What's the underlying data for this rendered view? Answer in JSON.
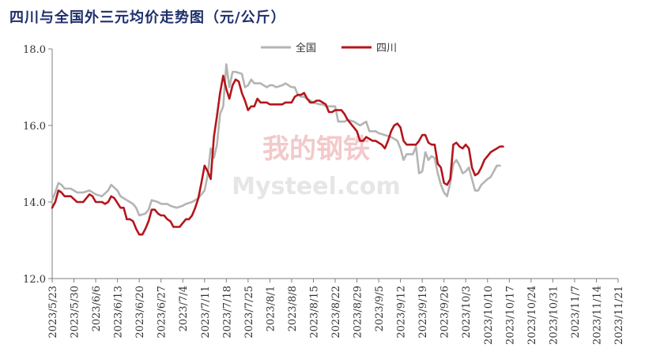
{
  "chart_data": {
    "type": "line",
    "title": "四川与全国外三元均价走势图（元/公斤）",
    "xlabel": "",
    "ylabel": "",
    "ylim": [
      12.0,
      18.0
    ],
    "y_ticks": [
      "12.0",
      "14.0",
      "16.0",
      "18.0"
    ],
    "x_ticks": [
      "2023/5/23",
      "2023/5/30",
      "2023/6/6",
      "2023/6/13",
      "2023/6/20",
      "2023/6/27",
      "2023/7/4",
      "2023/7/11",
      "2023/7/18",
      "2023/7/25",
      "2023/8/1",
      "2023/8/8",
      "2023/8/15",
      "2023/8/22",
      "2023/8/29",
      "2023/9/5",
      "2023/9/12",
      "2023/9/19",
      "2023/9/26",
      "2023/10/3",
      "2023/10/10",
      "2023/10/17",
      "2023/10/24",
      "2023/10/31",
      "2023/11/7",
      "2023/11/14",
      "2023/11/21"
    ],
    "grid": false,
    "legend_position": "top",
    "watermark": "我的钢铁 Mysteel.com",
    "series": [
      {
        "name": "全国",
        "color": "#b4b4b4",
        "points": [
          [
            0,
            14.05
          ],
          [
            1,
            14.25
          ],
          [
            2,
            14.5
          ],
          [
            3,
            14.45
          ],
          [
            4,
            14.35
          ],
          [
            6,
            14.35
          ],
          [
            8,
            14.25
          ],
          [
            10,
            14.25
          ],
          [
            12,
            14.3
          ],
          [
            14,
            14.2
          ],
          [
            16,
            14.15
          ],
          [
            18,
            14.3
          ],
          [
            19,
            14.45
          ],
          [
            21,
            14.3
          ],
          [
            22,
            14.15
          ],
          [
            24,
            14.05
          ],
          [
            26,
            13.95
          ],
          [
            27,
            13.85
          ],
          [
            28,
            13.65
          ],
          [
            30,
            13.7
          ],
          [
            31,
            13.8
          ],
          [
            32,
            14.05
          ],
          [
            34,
            14.0
          ],
          [
            35,
            13.95
          ],
          [
            37,
            13.95
          ],
          [
            38,
            13.9
          ],
          [
            40,
            13.85
          ],
          [
            42,
            13.9
          ],
          [
            43,
            13.95
          ],
          [
            45,
            14.0
          ],
          [
            47,
            14.1
          ],
          [
            49,
            14.3
          ],
          [
            50,
            14.7
          ],
          [
            51,
            15.4
          ],
          [
            52,
            15.15
          ],
          [
            53,
            15.5
          ],
          [
            54,
            16.3
          ],
          [
            55,
            16.5
          ],
          [
            56,
            17.6
          ],
          [
            57,
            17.0
          ],
          [
            58,
            17.4
          ],
          [
            59,
            17.4
          ],
          [
            61,
            17.35
          ],
          [
            62,
            17.0
          ],
          [
            63,
            17.05
          ],
          [
            64,
            17.2
          ],
          [
            65,
            17.1
          ],
          [
            67,
            17.1
          ],
          [
            69,
            17.0
          ],
          [
            70,
            17.05
          ],
          [
            71,
            17.05
          ],
          [
            72,
            17.0
          ],
          [
            74,
            17.05
          ],
          [
            75,
            17.1
          ],
          [
            77,
            17.0
          ],
          [
            78,
            17.0
          ],
          [
            79,
            16.8
          ],
          [
            80,
            16.75
          ],
          [
            81,
            16.75
          ],
          [
            82,
            16.7
          ],
          [
            84,
            16.6
          ],
          [
            86,
            16.55
          ],
          [
            87,
            16.55
          ],
          [
            88,
            16.5
          ],
          [
            91,
            16.5
          ],
          [
            92,
            16.1
          ],
          [
            94,
            16.1
          ],
          [
            95,
            16.15
          ],
          [
            97,
            16.1
          ],
          [
            99,
            16.0
          ],
          [
            101,
            16.1
          ],
          [
            102,
            15.85
          ],
          [
            104,
            15.85
          ],
          [
            105,
            15.8
          ],
          [
            107,
            15.75
          ],
          [
            109,
            15.7
          ],
          [
            110,
            15.65
          ],
          [
            111,
            15.6
          ],
          [
            112,
            15.4
          ],
          [
            113,
            15.1
          ],
          [
            114,
            15.25
          ],
          [
            116,
            15.25
          ],
          [
            117,
            15.45
          ],
          [
            118,
            14.75
          ],
          [
            119,
            14.8
          ],
          [
            120,
            15.3
          ],
          [
            121,
            15.1
          ],
          [
            122,
            15.2
          ],
          [
            123,
            15.15
          ],
          [
            124,
            14.75
          ],
          [
            125,
            14.45
          ],
          [
            126,
            14.25
          ],
          [
            127,
            14.15
          ],
          [
            128,
            14.5
          ],
          [
            129,
            15.0
          ],
          [
            130,
            15.1
          ],
          [
            131,
            14.95
          ],
          [
            132,
            14.75
          ],
          [
            133,
            14.8
          ],
          [
            134,
            14.9
          ],
          [
            135,
            14.6
          ],
          [
            136,
            14.3
          ],
          [
            137,
            14.3
          ],
          [
            138,
            14.45
          ],
          [
            140,
            14.6
          ],
          [
            141,
            14.65
          ],
          [
            142,
            14.8
          ],
          [
            143,
            14.95
          ],
          [
            144,
            14.95
          ]
        ]
      },
      {
        "name": "四川",
        "color": "#b3161b",
        "points": [
          [
            0,
            13.85
          ],
          [
            1,
            14.0
          ],
          [
            2,
            14.3
          ],
          [
            3,
            14.25
          ],
          [
            4,
            14.15
          ],
          [
            6,
            14.15
          ],
          [
            8,
            14.0
          ],
          [
            10,
            14.0
          ],
          [
            12,
            14.2
          ],
          [
            13,
            14.15
          ],
          [
            14,
            14.0
          ],
          [
            16,
            14.0
          ],
          [
            17,
            13.95
          ],
          [
            18,
            14.0
          ],
          [
            19,
            14.15
          ],
          [
            20,
            14.1
          ],
          [
            22,
            13.85
          ],
          [
            23,
            13.85
          ],
          [
            24,
            13.55
          ],
          [
            25,
            13.55
          ],
          [
            26,
            13.5
          ],
          [
            27,
            13.3
          ],
          [
            28,
            13.15
          ],
          [
            29,
            13.15
          ],
          [
            30,
            13.3
          ],
          [
            31,
            13.5
          ],
          [
            32,
            13.8
          ],
          [
            33,
            13.8
          ],
          [
            34,
            13.7
          ],
          [
            35,
            13.65
          ],
          [
            36,
            13.65
          ],
          [
            37,
            13.55
          ],
          [
            38,
            13.5
          ],
          [
            39,
            13.35
          ],
          [
            41,
            13.35
          ],
          [
            42,
            13.45
          ],
          [
            43,
            13.55
          ],
          [
            44,
            13.55
          ],
          [
            45,
            13.65
          ],
          [
            46,
            13.85
          ],
          [
            47,
            14.1
          ],
          [
            48,
            14.5
          ],
          [
            49,
            14.95
          ],
          [
            50,
            14.8
          ],
          [
            51,
            14.6
          ],
          [
            52,
            15.7
          ],
          [
            53,
            16.25
          ],
          [
            54,
            16.85
          ],
          [
            55,
            17.3
          ],
          [
            56,
            16.95
          ],
          [
            57,
            16.7
          ],
          [
            58,
            17.05
          ],
          [
            59,
            17.2
          ],
          [
            60,
            17.15
          ],
          [
            61,
            16.85
          ],
          [
            62,
            16.65
          ],
          [
            63,
            16.4
          ],
          [
            64,
            16.5
          ],
          [
            65,
            16.5
          ],
          [
            66,
            16.7
          ],
          [
            67,
            16.6
          ],
          [
            69,
            16.6
          ],
          [
            70,
            16.55
          ],
          [
            74,
            16.55
          ],
          [
            75,
            16.6
          ],
          [
            77,
            16.6
          ],
          [
            78,
            16.75
          ],
          [
            79,
            16.8
          ],
          [
            80,
            16.8
          ],
          [
            81,
            16.85
          ],
          [
            82,
            16.7
          ],
          [
            83,
            16.6
          ],
          [
            84,
            16.6
          ],
          [
            85,
            16.65
          ],
          [
            86,
            16.65
          ],
          [
            87,
            16.6
          ],
          [
            88,
            16.55
          ],
          [
            89,
            16.35
          ],
          [
            90,
            16.35
          ],
          [
            91,
            16.4
          ],
          [
            93,
            16.4
          ],
          [
            94,
            16.3
          ],
          [
            95,
            16.15
          ],
          [
            97,
            15.95
          ],
          [
            98,
            15.85
          ],
          [
            99,
            15.6
          ],
          [
            100,
            15.6
          ],
          [
            101,
            15.7
          ],
          [
            102,
            15.65
          ],
          [
            103,
            15.6
          ],
          [
            104,
            15.6
          ],
          [
            106,
            15.5
          ],
          [
            107,
            15.4
          ],
          [
            108,
            15.6
          ],
          [
            109,
            15.85
          ],
          [
            110,
            16.0
          ],
          [
            111,
            16.05
          ],
          [
            112,
            15.95
          ],
          [
            113,
            15.6
          ],
          [
            114,
            15.5
          ],
          [
            115,
            15.5
          ],
          [
            117,
            15.5
          ],
          [
            118,
            15.6
          ],
          [
            119,
            15.75
          ],
          [
            120,
            15.75
          ],
          [
            121,
            15.55
          ],
          [
            122,
            15.5
          ],
          [
            123,
            15.5
          ],
          [
            124,
            15.0
          ],
          [
            125,
            14.9
          ],
          [
            126,
            14.5
          ],
          [
            127,
            14.45
          ],
          [
            128,
            14.6
          ],
          [
            129,
            15.5
          ],
          [
            130,
            15.55
          ],
          [
            131,
            15.45
          ],
          [
            132,
            15.4
          ],
          [
            133,
            15.5
          ],
          [
            134,
            15.4
          ],
          [
            135,
            14.9
          ],
          [
            136,
            14.7
          ],
          [
            137,
            14.75
          ],
          [
            138,
            14.9
          ],
          [
            139,
            15.1
          ],
          [
            140,
            15.2
          ],
          [
            141,
            15.3
          ],
          [
            142,
            15.35
          ],
          [
            143,
            15.4
          ],
          [
            144,
            15.45
          ],
          [
            145,
            15.45
          ]
        ]
      }
    ]
  }
}
